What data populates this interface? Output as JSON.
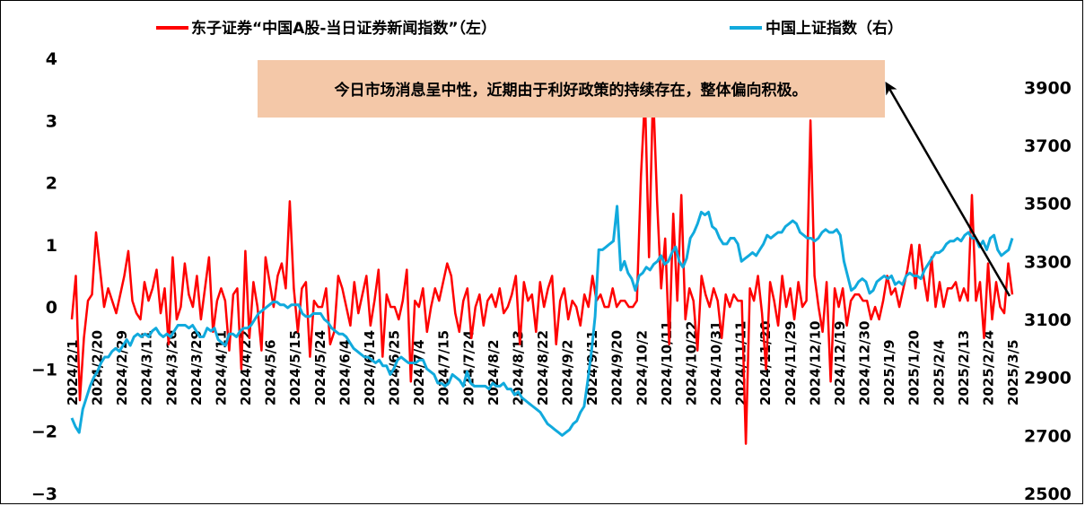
{
  "chart_data": {
    "type": "line",
    "legend_position": "top",
    "colors": {
      "news_index": "#ff0000",
      "shanghai_index": "#11aadd",
      "note_box": "#f4c8a8",
      "arrow": "#000000"
    },
    "left_axis": {
      "ylim": [
        -3,
        4
      ],
      "ticks": [
        "4",
        "3",
        "2",
        "1",
        "0",
        "−1",
        "−2",
        "−3"
      ],
      "tick_values": [
        4,
        3,
        2,
        1,
        0,
        -1,
        -2,
        -3
      ]
    },
    "right_axis": {
      "ylim": [
        2500,
        4000
      ],
      "ticks": [
        "3900",
        "3700",
        "3500",
        "3300",
        "3100",
        "2900",
        "2700",
        "2500"
      ],
      "tick_values": [
        3900,
        3700,
        3500,
        3300,
        3100,
        2900,
        2700,
        2500
      ]
    },
    "x_tick_labels": [
      "2024/2/1",
      "2024/2/20",
      "2024/2/29",
      "2024/3/11",
      "2024/3/20",
      "2024/3/29",
      "2024/4/11",
      "2024/4/22",
      "2024/5/6",
      "2024/5/15",
      "2024/5/24",
      "2024/6/4",
      "2024/6/14",
      "2024/6/25",
      "2024/7/4",
      "2024/7/15",
      "2024/7/24",
      "2024/8/2",
      "2024/8/13",
      "2024/8/22",
      "2024/9/2",
      "2024/9/11",
      "2024/9/20",
      "2024/10/2",
      "2024/10/11",
      "2024/10/22",
      "2024/10/31",
      "2024/11/11",
      "2024/11/20",
      "2024/11/29",
      "2024/12/10",
      "2024/12/19",
      "2024/12/30",
      "2025/1/9",
      "2025/1/20",
      "2025/2/4",
      "2025/2/13",
      "2025/2/24",
      "2025/3/5"
    ],
    "series": [
      {
        "name": "东子证券“中国A股-当日证券新闻指数”（左）",
        "axis": "left",
        "values": [
          -0.2,
          0.5,
          -1.5,
          -0.5,
          0.1,
          0.2,
          1.2,
          0.6,
          0.0,
          0.3,
          0.1,
          -0.1,
          0.2,
          0.5,
          0.9,
          0.1,
          -0.1,
          -0.2,
          0.4,
          0.1,
          0.3,
          0.6,
          -0.1,
          0.3,
          -0.6,
          0.8,
          -0.2,
          0.0,
          0.7,
          0.2,
          0.0,
          0.5,
          -0.2,
          0.3,
          0.8,
          -0.4,
          0.1,
          0.3,
          0.1,
          -0.7,
          0.2,
          0.3,
          -1.0,
          0.9,
          -0.5,
          0.4,
          0.0,
          -0.7,
          0.8,
          0.4,
          0.0,
          0.5,
          0.7,
          0.3,
          1.7,
          0.3,
          -0.4,
          0.3,
          0.4,
          -0.8,
          0.1,
          0.0,
          0.0,
          0.3,
          -0.6,
          -0.4,
          0.5,
          0.3,
          0.0,
          -0.3,
          0.4,
          -0.1,
          0.2,
          0.5,
          -0.3,
          0.1,
          0.6,
          -0.8,
          0.2,
          0.0,
          0.0,
          -0.2,
          0.1,
          0.6,
          -1.2,
          0.1,
          0.0,
          0.3,
          -0.4,
          0.0,
          0.3,
          0.1,
          0.4,
          0.7,
          0.5,
          -0.1,
          -0.4,
          0.1,
          0.3,
          -0.5,
          0.0,
          0.2,
          -0.3,
          0.1,
          0.2,
          0.0,
          0.3,
          -0.1,
          0.0,
          0.2,
          0.5,
          -0.6,
          0.4,
          0.1,
          0.2,
          -0.4,
          0.4,
          0.0,
          0.3,
          0.5,
          -0.6,
          0.1,
          0.3,
          -0.2,
          0.1,
          0.0,
          -0.3,
          0.2,
          0.0,
          0.5,
          0.1,
          0.2,
          0.0,
          0.0,
          0.3,
          0.0,
          0.1,
          0.1,
          0.0,
          0.0,
          0.1,
          2.1,
          3.4,
          0.8,
          3.5,
          1.7,
          0.3,
          1.1,
          -0.6,
          1.5,
          0.1,
          1.8,
          -0.2,
          0.3,
          0.1,
          -0.7,
          0.5,
          0.2,
          0.0,
          0.3,
          0.1,
          -0.5,
          0.2,
          0.0,
          0.2,
          0.1,
          0.1,
          -2.2,
          0.3,
          0.1,
          0.5,
          -0.1,
          -1.0,
          0.4,
          0.1,
          -0.3,
          0.5,
          0.0,
          0.3,
          -0.2,
          0.4,
          0.0,
          0.1,
          3.0,
          0.5,
          0.0,
          -0.4,
          0.4,
          -1.2,
          0.3,
          0.0,
          0.3,
          -0.3,
          0.1,
          0.2,
          0.2,
          0.1,
          0.1,
          -0.2,
          0.0,
          -0.2,
          0.1,
          0.5,
          0.2,
          0.3,
          0.0,
          0.3,
          0.6,
          1.0,
          0.3,
          1.0,
          0.5,
          0.1,
          0.8,
          0.0,
          0.4,
          0.0,
          0.3,
          0.3,
          0.4,
          0.1,
          0.3,
          0.1,
          1.8,
          0.1,
          0.4,
          -0.5,
          0.7,
          -0.2,
          0.4,
          0.0,
          -0.1,
          0.7,
          0.2
        ]
      },
      {
        "name": "中国上证指数（右）",
        "axis": "right",
        "values": [
          2760,
          2730,
          2710,
          2790,
          2830,
          2870,
          2900,
          2920,
          2950,
          2970,
          2970,
          2990,
          3000,
          2990,
          3010,
          3030,
          3010,
          3040,
          3050,
          3040,
          3050,
          3040,
          3060,
          3070,
          3050,
          3040,
          3050,
          3040,
          3060,
          3080,
          3080,
          3080,
          3070,
          3080,
          3060,
          3040,
          3040,
          3070,
          3060,
          3070,
          3030,
          3020,
          3010,
          3050,
          3050,
          3040,
          3060,
          3070,
          3070,
          3080,
          3100,
          3120,
          3130,
          3140,
          3150,
          3160,
          3160,
          3150,
          3150,
          3140,
          3150,
          3150,
          3150,
          3120,
          3110,
          3110,
          3120,
          3120,
          3120,
          3100,
          3090,
          3070,
          3060,
          3050,
          3050,
          3040,
          3020,
          3000,
          2990,
          2980,
          2970,
          2970,
          2960,
          2950,
          2960,
          2940,
          2940,
          2910,
          2930,
          2960,
          2970,
          2960,
          2950,
          2950,
          2950,
          2960,
          2960,
          2930,
          2920,
          2910,
          2880,
          2880,
          2870,
          2880,
          2910,
          2900,
          2890,
          2870,
          2920,
          2880,
          2870,
          2870,
          2870,
          2870,
          2860,
          2880,
          2870,
          2870,
          2880,
          2860,
          2860,
          2840,
          2850,
          2830,
          2820,
          2810,
          2800,
          2790,
          2780,
          2760,
          2740,
          2730,
          2720,
          2710,
          2700,
          2710,
          2720,
          2740,
          2750,
          2780,
          2800,
          2890,
          2990,
          3110,
          3340,
          3340,
          3350,
          3360,
          3370,
          3490,
          3270,
          3300,
          3260,
          3240,
          3200,
          3250,
          3260,
          3280,
          3270,
          3290,
          3300,
          3320,
          3290,
          3300,
          3330,
          3350,
          3300,
          3280,
          3310,
          3380,
          3400,
          3430,
          3470,
          3460,
          3470,
          3420,
          3410,
          3380,
          3360,
          3360,
          3380,
          3380,
          3360,
          3300,
          3310,
          3320,
          3330,
          3320,
          3340,
          3360,
          3390,
          3380,
          3390,
          3400,
          3400,
          3420,
          3430,
          3440,
          3430,
          3400,
          3390,
          3380,
          3380,
          3370,
          3380,
          3400,
          3410,
          3400,
          3400,
          3410,
          3390,
          3300,
          3250,
          3200,
          3210,
          3230,
          3240,
          3230,
          3190,
          3200,
          3230,
          3240,
          3250,
          3240,
          3250,
          3220,
          3230,
          3220,
          3250,
          3260,
          3250,
          3250,
          3240,
          3270,
          3290,
          3310,
          3330,
          3330,
          3340,
          3360,
          3370,
          3370,
          3380,
          3370,
          3390,
          3400,
          3380,
          3380,
          3350,
          3370,
          3340,
          3380,
          3390,
          3340,
          3320,
          3330,
          3340,
          3380
        ]
      }
    ],
    "annotation": {
      "text": "今日市场消息呈中性，近期由于利好政策的持续存在，整体偏向积极。"
    }
  }
}
